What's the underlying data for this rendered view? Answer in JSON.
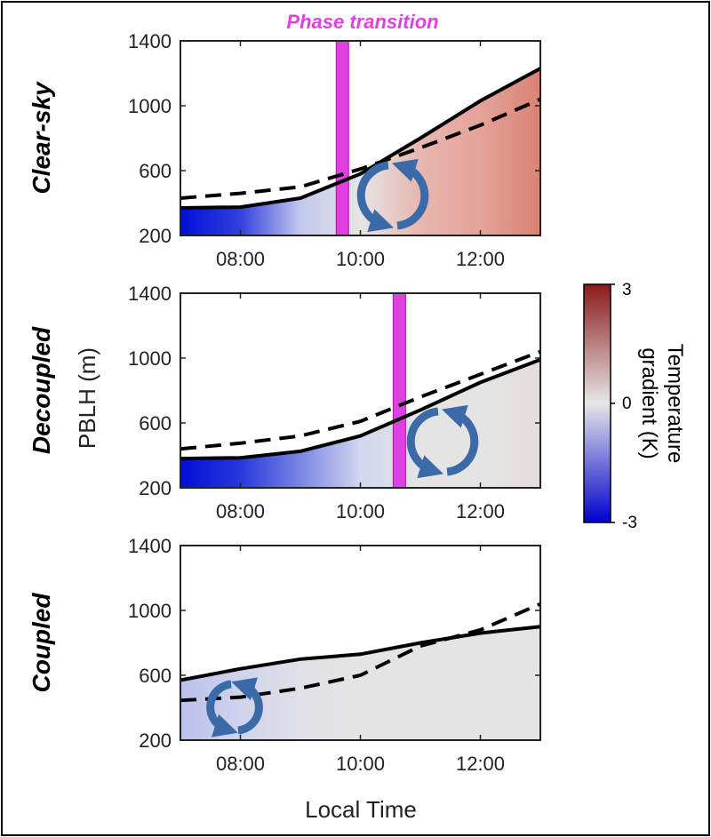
{
  "figure": {
    "phase_label": "Phase transition",
    "phase_color": "#e040e0",
    "ylabel": "PBLH (m)",
    "xlabel": "Local Time"
  },
  "colorbar": {
    "label_line1": "Temperature",
    "label_line2": "gradient (K)",
    "tick_max": "3",
    "tick_mid": "0",
    "tick_min": "-3",
    "color_min": "#0000cc",
    "color_mid": "#e6e6e6",
    "color_max": "#8b1a1a"
  },
  "chart_data": [
    {
      "type": "area",
      "panel": "Clear-sky",
      "x": [
        7,
        8,
        9,
        10,
        11,
        12,
        13
      ],
      "solid": [
        370,
        375,
        430,
        580,
        800,
        1030,
        1230
      ],
      "dashed": [
        430,
        460,
        500,
        610,
        740,
        880,
        1040
      ],
      "gradient_colors": [
        "#0010d8",
        "#3340dd",
        "#c2c8ee",
        "#e5e5e5",
        "#e7b6ae",
        "#e4a399",
        "#d98274"
      ],
      "phase_time": 9.7,
      "xticks": [
        "08:00",
        "10:00",
        "12:00"
      ],
      "yticks": [
        "200",
        "600",
        "1000",
        "1400"
      ],
      "xlim": [
        7,
        13
      ],
      "ylim": [
        200,
        1400
      ]
    },
    {
      "type": "area",
      "panel": "Decoupled",
      "x": [
        7,
        8,
        9,
        10,
        11,
        12,
        13
      ],
      "solid": [
        380,
        385,
        425,
        520,
        680,
        850,
        990
      ],
      "dashed": [
        440,
        475,
        520,
        610,
        760,
        900,
        1040
      ],
      "gradient_colors": [
        "#0010d8",
        "#2838dc",
        "#7a86e4",
        "#d2d6ee",
        "#e4e4e4",
        "#e4e4e4",
        "#e6dcdc"
      ],
      "phase_time": 10.65,
      "xticks": [
        "08:00",
        "10:00",
        "12:00"
      ],
      "yticks": [
        "200",
        "600",
        "1000",
        "1400"
      ],
      "xlim": [
        7,
        13
      ],
      "ylim": [
        200,
        1400
      ]
    },
    {
      "type": "area",
      "panel": "Coupled",
      "x": [
        7,
        8,
        9,
        10,
        11,
        12,
        13
      ],
      "solid": [
        570,
        640,
        700,
        730,
        800,
        860,
        900
      ],
      "dashed": [
        445,
        465,
        520,
        600,
        780,
        880,
        1040
      ],
      "gradient_colors": [
        "#bcc0ec",
        "#d0d3ec",
        "#e0e0e6",
        "#e4e4e4",
        "#e4e4e4",
        "#e4e4e4",
        "#e4e4e4"
      ],
      "phase_time": null,
      "xticks": [
        "08:00",
        "10:00",
        "12:00"
      ],
      "yticks": [
        "200",
        "600",
        "1000",
        "1400"
      ],
      "xlim": [
        7,
        13
      ],
      "ylim": [
        200,
        1400
      ]
    }
  ]
}
